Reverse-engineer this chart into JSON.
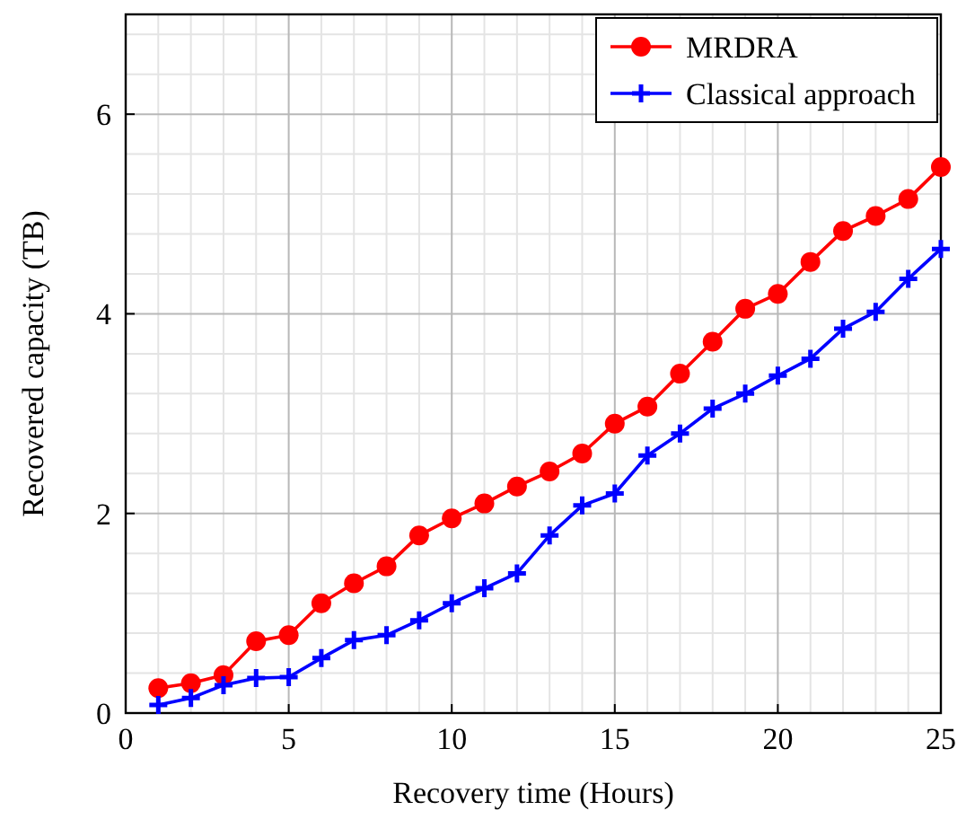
{
  "chart_data": {
    "type": "line",
    "xlabel": "Recovery time (Hours)",
    "ylabel": "Recovered capacity (TB)",
    "x": [
      1,
      2,
      3,
      4,
      5,
      6,
      7,
      8,
      9,
      10,
      11,
      12,
      13,
      14,
      15,
      16,
      17,
      18,
      19,
      20,
      21,
      22,
      23,
      24,
      25
    ],
    "series": [
      {
        "name": "MRDRA",
        "color": "#ff0000",
        "marker": "circle",
        "values": [
          0.25,
          0.3,
          0.38,
          0.72,
          0.78,
          1.1,
          1.3,
          1.47,
          1.78,
          1.95,
          2.1,
          2.27,
          2.42,
          2.6,
          2.9,
          3.07,
          3.4,
          3.72,
          4.05,
          4.2,
          4.52,
          4.83,
          4.98,
          5.15,
          5.47
        ]
      },
      {
        "name": "Classical approach",
        "color": "#0000ff",
        "marker": "cross",
        "values": [
          0.08,
          0.15,
          0.28,
          0.35,
          0.36,
          0.55,
          0.73,
          0.78,
          0.93,
          1.1,
          1.25,
          1.4,
          1.78,
          2.08,
          2.2,
          2.58,
          2.8,
          3.05,
          3.2,
          3.38,
          3.55,
          3.85,
          4.02,
          4.35,
          4.65
        ]
      }
    ],
    "xlim": [
      0,
      25
    ],
    "xticks": [
      0,
      5,
      10,
      15,
      20,
      25
    ],
    "ylim": [
      0,
      7
    ],
    "yticks": [
      0,
      2,
      4,
      6
    ],
    "grid": true,
    "legend": "top right",
    "line_style": "solid"
  }
}
